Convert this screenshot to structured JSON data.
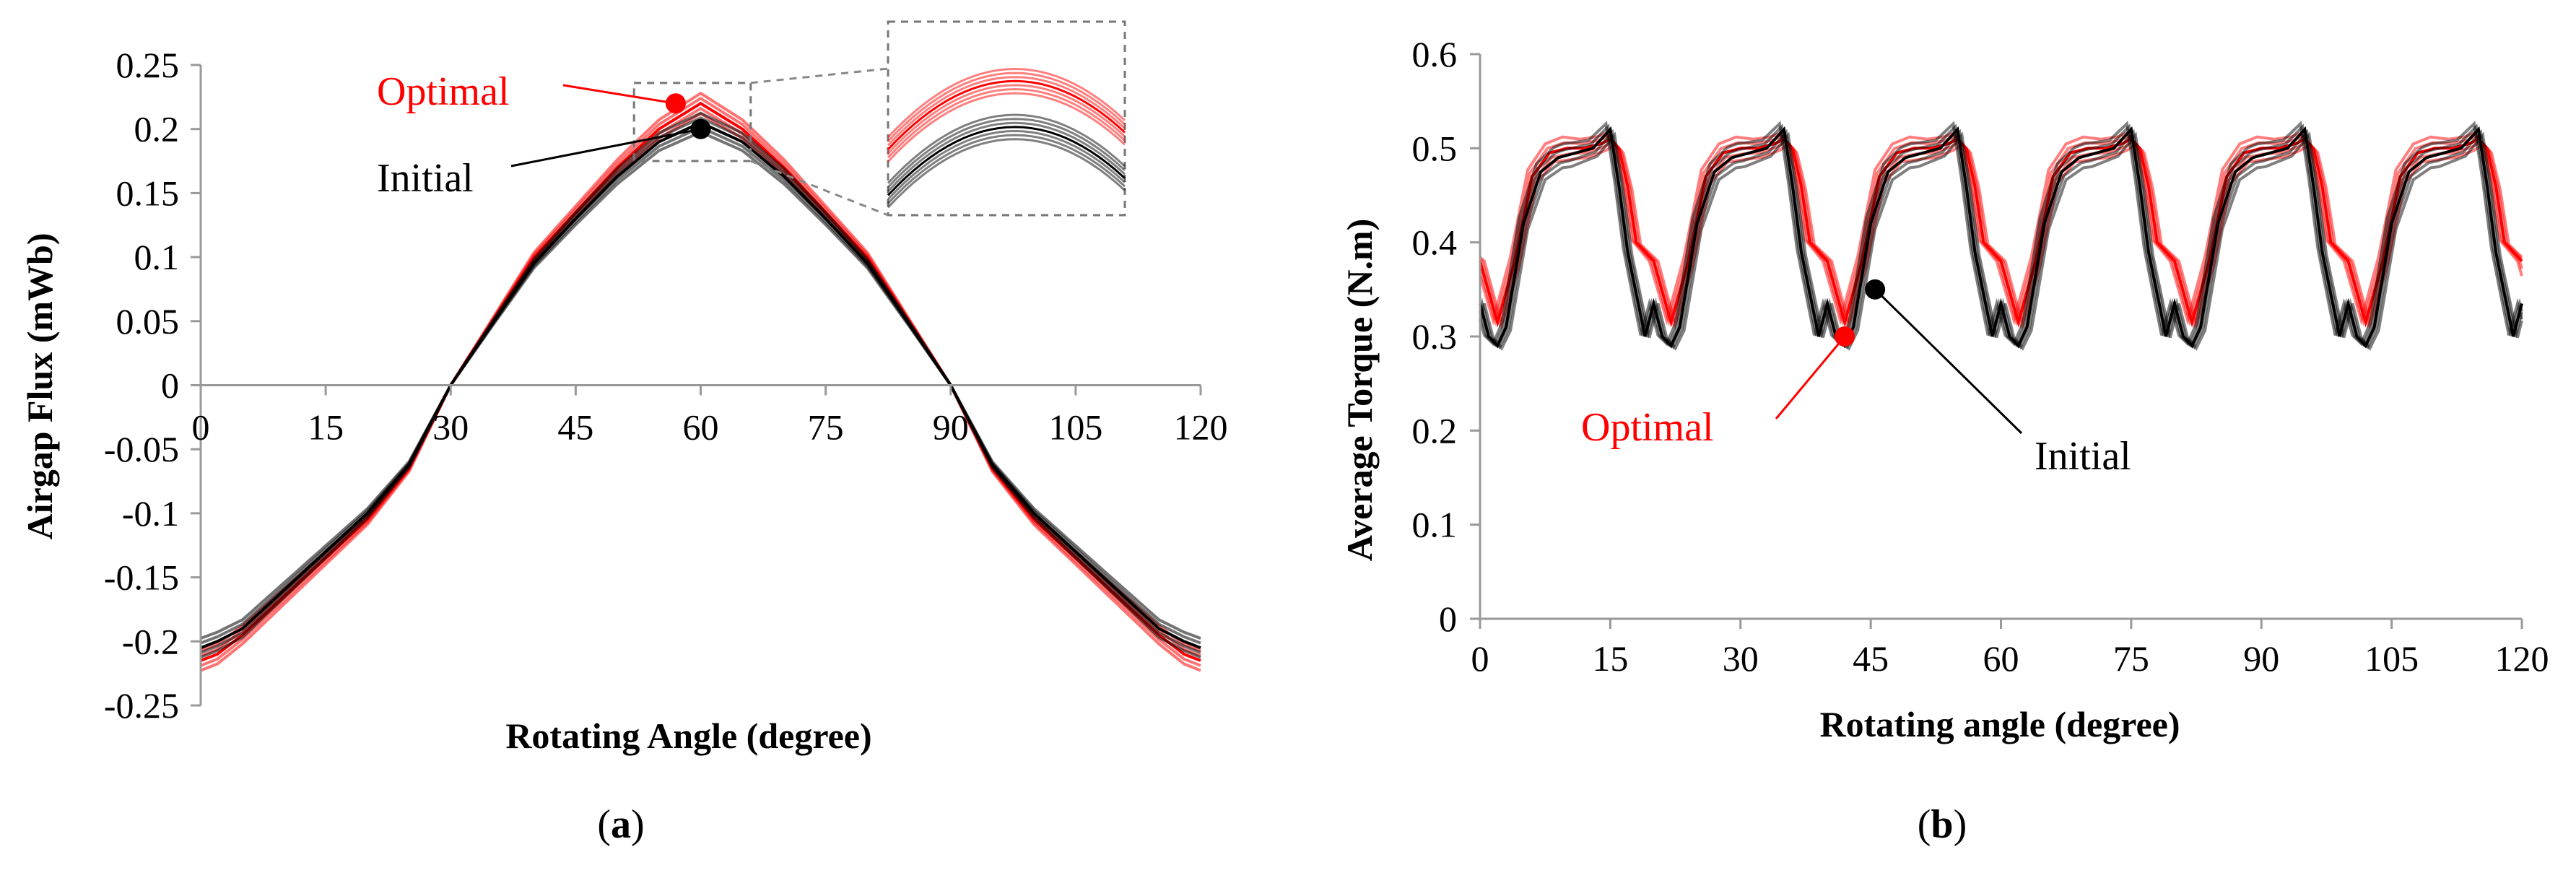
{
  "chart_data": [
    {
      "type": "line",
      "panel": "a",
      "caption_letter": "a",
      "xlabel": "Rotating Angle (degree)",
      "ylabel": "Airgap Flux (mWb)",
      "xlim": [
        0,
        120
      ],
      "ylim": [
        -0.25,
        0.25
      ],
      "xticks": [
        "0",
        "15",
        "30",
        "45",
        "60",
        "75",
        "90",
        "105",
        "120"
      ],
      "yticks": [
        "0.25",
        "0.2",
        "0.15",
        "0.1",
        "0.05",
        "0",
        "-0.05",
        "-0.1",
        "-0.15",
        "-0.2",
        "-0.25"
      ],
      "annotations": [
        {
          "label": "Optimal",
          "x": 57,
          "y": 0.22,
          "color": "#ff0000"
        },
        {
          "label": "Initial",
          "x": 60,
          "y": 0.2,
          "color": "#000000"
        }
      ],
      "inset": "zoom of peak near 60 degree",
      "series": [
        {
          "name": "Optimal",
          "color": "#ff0000",
          "x": [
            0,
            2,
            5,
            10,
            15,
            20,
            25,
            30,
            35,
            40,
            45,
            50,
            55,
            60,
            65,
            70,
            75,
            80,
            85,
            90,
            95,
            100,
            105,
            110,
            115,
            118,
            120
          ],
          "y": [
            -0.215,
            -0.21,
            -0.195,
            -0.165,
            -0.135,
            -0.105,
            -0.065,
            0.0,
            0.05,
            0.1,
            0.135,
            0.17,
            0.2,
            0.22,
            0.2,
            0.17,
            0.135,
            0.1,
            0.05,
            0.0,
            -0.065,
            -0.105,
            -0.135,
            -0.165,
            -0.195,
            -0.21,
            -0.215
          ]
        },
        {
          "name": "Initial",
          "color": "#000000",
          "x": [
            0,
            2,
            5,
            10,
            15,
            20,
            25,
            30,
            35,
            40,
            45,
            50,
            55,
            60,
            65,
            70,
            75,
            80,
            85,
            90,
            95,
            100,
            105,
            110,
            115,
            118,
            120
          ],
          "y": [
            -0.205,
            -0.2,
            -0.19,
            -0.16,
            -0.13,
            -0.1,
            -0.062,
            0.0,
            0.048,
            0.095,
            0.13,
            0.163,
            0.19,
            0.205,
            0.19,
            0.163,
            0.13,
            0.095,
            0.048,
            0.0,
            -0.062,
            -0.1,
            -0.13,
            -0.16,
            -0.19,
            -0.2,
            -0.205
          ]
        }
      ]
    },
    {
      "type": "line",
      "panel": "b",
      "caption_letter": "b",
      "xlabel": "Rotating angle (degree)",
      "ylabel": "Average Torque (N.m)",
      "xlim": [
        0,
        120
      ],
      "ylim": [
        0,
        0.6
      ],
      "xticks": [
        "0",
        "15",
        "30",
        "45",
        "60",
        "75",
        "90",
        "105",
        "120"
      ],
      "yticks": [
        "0.6",
        "0.5",
        "0.4",
        "0.3",
        "0.2",
        "0.1",
        "0"
      ],
      "annotations": [
        {
          "label": "Optimal",
          "x": 42,
          "y": 0.3,
          "color": "#ff0000"
        },
        {
          "label": "Initial",
          "x": 45.5,
          "y": 0.35,
          "color": "#000000"
        }
      ],
      "period_deg": 20,
      "series": [
        {
          "name": "Optimal",
          "color": "#ff0000",
          "x_period": [
            0,
            2,
            4,
            6,
            8,
            10,
            12,
            14,
            15,
            16,
            17,
            18,
            20
          ],
          "y_period": [
            0.38,
            0.315,
            0.38,
            0.47,
            0.495,
            0.5,
            0.5,
            0.505,
            0.51,
            0.5,
            0.46,
            0.4,
            0.38
          ]
        },
        {
          "name": "Initial",
          "color": "#000000",
          "x_period": [
            0,
            1,
            2,
            3,
            5,
            7,
            9,
            11,
            13,
            15,
            16,
            17,
            18,
            19,
            20
          ],
          "y_period": [
            0.335,
            0.3,
            0.29,
            0.31,
            0.42,
            0.475,
            0.49,
            0.495,
            0.5,
            0.52,
            0.46,
            0.39,
            0.345,
            0.3,
            0.335
          ]
        }
      ]
    }
  ]
}
